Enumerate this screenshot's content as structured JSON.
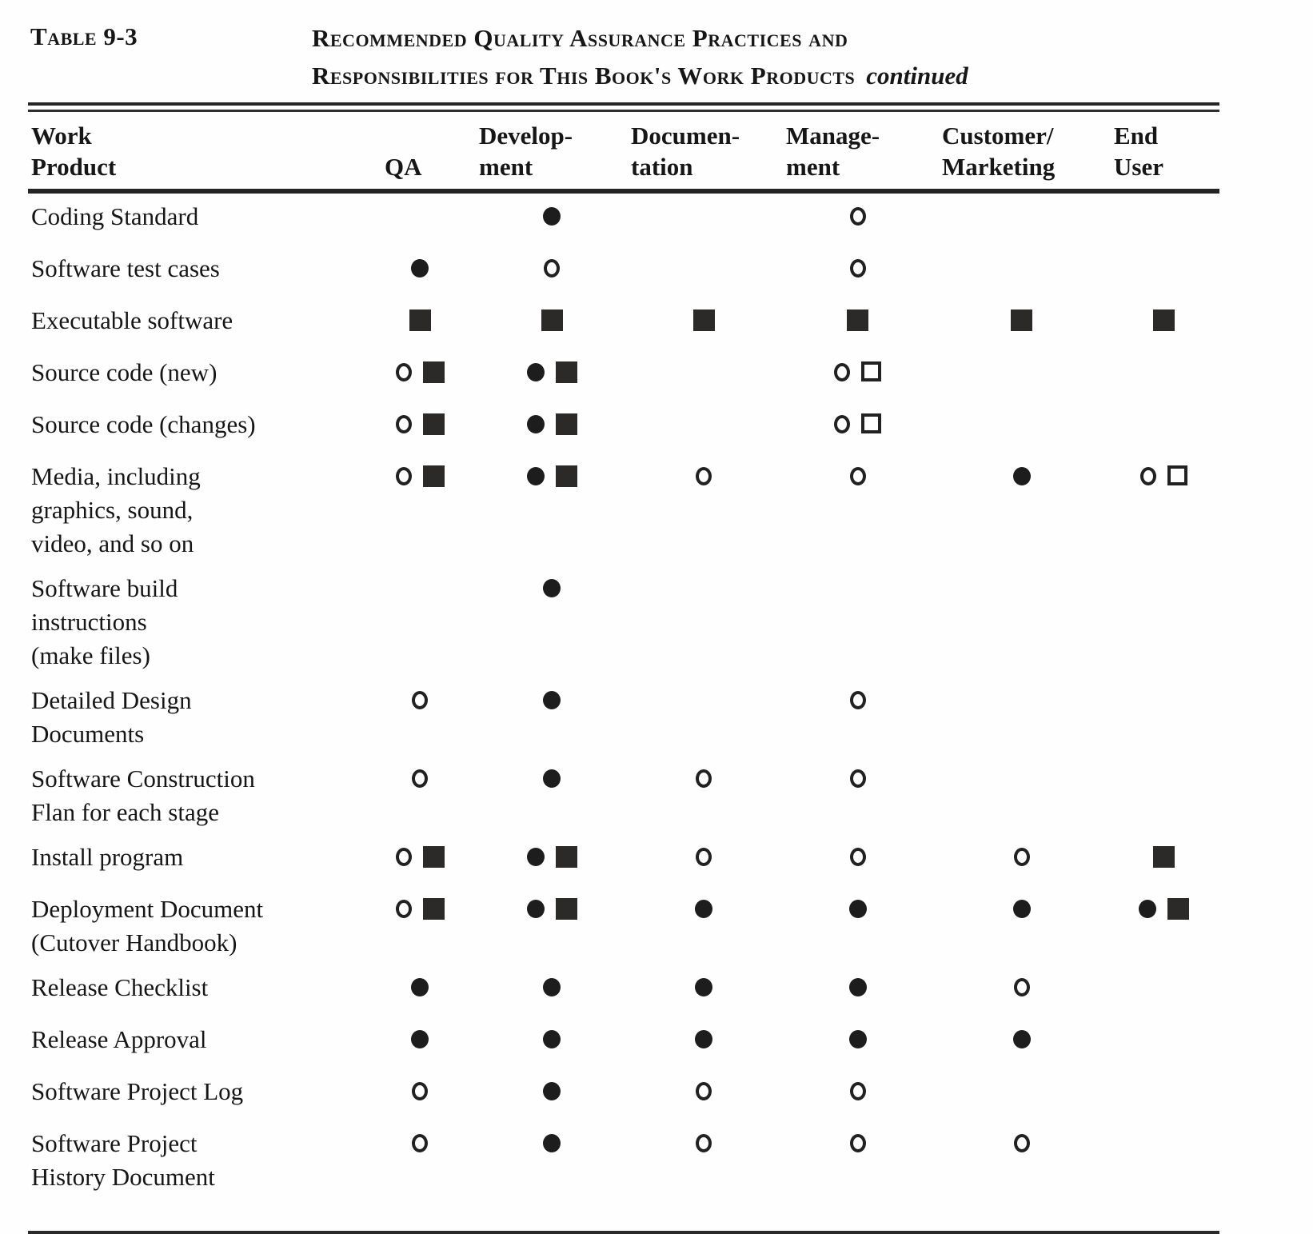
{
  "page": {
    "ink_color": "#1d1d1d",
    "paper_color": "#fefefe",
    "label": "Table 9-3",
    "title_line1": "Recommended Quality Assurance Practices and",
    "title_line2": "Responsibilities for This Book's Work Products",
    "continued": "continued"
  },
  "table": {
    "columns": [
      {
        "id": "product",
        "label": "Work\nProduct"
      },
      {
        "id": "qa",
        "label": "QA"
      },
      {
        "id": "development",
        "label": "Develop-\nment"
      },
      {
        "id": "documentation",
        "label": "Documen-\ntation"
      },
      {
        "id": "management",
        "label": "Manage-\nment"
      },
      {
        "id": "customer_marketing",
        "label": "Customer/\nMarketing"
      },
      {
        "id": "end_user",
        "label": "End\nUser"
      }
    ],
    "symbol_legend": {
      "filled-circle": "●",
      "open-circle": "○",
      "filled-square": "■",
      "open-square": "□"
    },
    "rows": [
      {
        "product": "Coding Standard",
        "cells": {
          "qa": [],
          "development": [
            "filled-circle"
          ],
          "documentation": [],
          "management": [
            "open-circle"
          ],
          "customer_marketing": [],
          "end_user": []
        }
      },
      {
        "product": "Software test cases",
        "cells": {
          "qa": [
            "filled-circle"
          ],
          "development": [
            "open-circle"
          ],
          "documentation": [],
          "management": [
            "open-circle"
          ],
          "customer_marketing": [],
          "end_user": []
        }
      },
      {
        "product": "Executable  software",
        "cells": {
          "qa": [
            "filled-square"
          ],
          "development": [
            "filled-square"
          ],
          "documentation": [
            "filled-square"
          ],
          "management": [
            "filled-square"
          ],
          "customer_marketing": [
            "filled-square"
          ],
          "end_user": [
            "filled-square"
          ]
        }
      },
      {
        "product": "Source code (new)",
        "cells": {
          "qa": [
            "open-circle",
            "filled-square"
          ],
          "development": [
            "filled-circle",
            "filled-square"
          ],
          "documentation": [],
          "management": [
            "open-circle",
            "open-square"
          ],
          "customer_marketing": [],
          "end_user": []
        }
      },
      {
        "product": "Source code (changes)",
        "cells": {
          "qa": [
            "open-circle",
            "filled-square"
          ],
          "development": [
            "filled-circle",
            "filled-square"
          ],
          "documentation": [],
          "management": [
            "open-circle",
            "open-square"
          ],
          "customer_marketing": [],
          "end_user": []
        }
      },
      {
        "product": "Media, including\ngraphics, sound,\nvideo, and so on",
        "cells": {
          "qa": [
            "open-circle",
            "filled-square"
          ],
          "development": [
            "filled-circle",
            "filled-square"
          ],
          "documentation": [
            "open-circle"
          ],
          "management": [
            "open-circle"
          ],
          "customer_marketing": [
            "filled-circle"
          ],
          "end_user": [
            "open-circle",
            "open-square"
          ]
        }
      },
      {
        "product": "Software  build\ninstructions\n(make files)",
        "cells": {
          "qa": [],
          "development": [
            "filled-circle"
          ],
          "documentation": [],
          "management": [],
          "customer_marketing": [],
          "end_user": []
        }
      },
      {
        "product": "Detailed Design\nDocuments",
        "cells": {
          "qa": [
            "open-circle"
          ],
          "development": [
            "filled-circle"
          ],
          "documentation": [],
          "management": [
            "open-circle"
          ],
          "customer_marketing": [],
          "end_user": []
        }
      },
      {
        "product": "Software  Construction\nFlan for each stage",
        "cells": {
          "qa": [
            "open-circle"
          ],
          "development": [
            "filled-circle"
          ],
          "documentation": [
            "open-circle"
          ],
          "management": [
            "open-circle"
          ],
          "customer_marketing": [],
          "end_user": []
        }
      },
      {
        "product": "Install program",
        "cells": {
          "qa": [
            "open-circle",
            "filled-square"
          ],
          "development": [
            "filled-circle",
            "filled-square"
          ],
          "documentation": [
            "open-circle"
          ],
          "management": [
            "open-circle"
          ],
          "customer_marketing": [
            "open-circle"
          ],
          "end_user": [
            "filled-square"
          ]
        }
      },
      {
        "product": "Deployment Document\n(Cutover  Handbook)",
        "cells": {
          "qa": [
            "open-circle",
            "filled-square"
          ],
          "development": [
            "filled-circle",
            "filled-square"
          ],
          "documentation": [
            "filled-circle"
          ],
          "management": [
            "filled-circle"
          ],
          "customer_marketing": [
            "filled-circle"
          ],
          "end_user": [
            "filled-circle",
            "filled-square"
          ]
        }
      },
      {
        "product": "Release  Checklist",
        "cells": {
          "qa": [
            "filled-circle"
          ],
          "development": [
            "filled-circle"
          ],
          "documentation": [
            "filled-circle"
          ],
          "management": [
            "filled-circle"
          ],
          "customer_marketing": [
            "open-circle"
          ],
          "end_user": []
        }
      },
      {
        "product": "Release  Approval",
        "cells": {
          "qa": [
            "filled-circle"
          ],
          "development": [
            "filled-circle"
          ],
          "documentation": [
            "filled-circle"
          ],
          "management": [
            "filled-circle"
          ],
          "customer_marketing": [
            "filled-circle"
          ],
          "end_user": []
        }
      },
      {
        "product": "Software Project Log",
        "cells": {
          "qa": [
            "open-circle"
          ],
          "development": [
            "filled-circle"
          ],
          "documentation": [
            "open-circle"
          ],
          "management": [
            "open-circle"
          ],
          "customer_marketing": [],
          "end_user": []
        }
      },
      {
        "product": "Software Project\nHistory Document",
        "cells": {
          "qa": [
            "open-circle"
          ],
          "development": [
            "filled-circle"
          ],
          "documentation": [
            "open-circle"
          ],
          "management": [
            "open-circle"
          ],
          "customer_marketing": [
            "open-circle"
          ],
          "end_user": []
        }
      }
    ]
  }
}
